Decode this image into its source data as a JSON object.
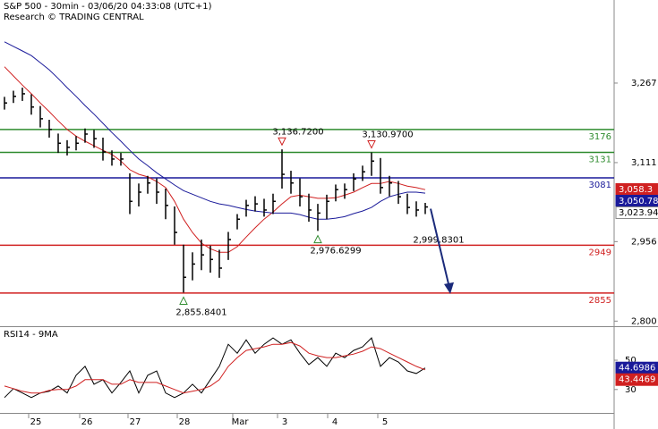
{
  "chart_data": [
    {
      "type": "ohlc",
      "title": "S&P 500 - 30min - 03/06/20 04:33:08 (UTC+1)",
      "subtitle": "Research © TRADING CENTRAL",
      "xlim": [
        -0.5,
        68.1
      ],
      "xticks": [
        {
          "value": 3.5,
          "label": "25"
        },
        {
          "value": 9.2,
          "label": "26"
        },
        {
          "value": 14.6,
          "label": "27"
        },
        {
          "value": 20.1,
          "label": "28"
        },
        {
          "value": 26.3,
          "label": "Mar"
        },
        {
          "value": 31.3,
          "label": "3"
        },
        {
          "value": 36.9,
          "label": "4"
        },
        {
          "value": 42.5,
          "label": "5"
        }
      ],
      "ylim": [
        2790,
        3430
      ],
      "yticks": [
        {
          "value": 2800,
          "label": "2,800"
        },
        {
          "value": 2956,
          "label": "2,956"
        },
        {
          "value": 3111,
          "label": "3,111"
        },
        {
          "value": 3267,
          "label": "3,267"
        }
      ],
      "color": "#000000",
      "high": [
        3240,
        3252,
        3258,
        3245,
        3222,
        3195,
        3168,
        3155,
        3163,
        3178,
        3175,
        3160,
        3135,
        3130,
        3090,
        3070,
        3085,
        3080,
        3060,
        3025,
        2950,
        2935,
        2960,
        2948,
        2940,
        2975,
        3010,
        3038,
        3045,
        3040,
        3050,
        3137,
        3095,
        3080,
        3050,
        3030,
        3048,
        3068,
        3070,
        3090,
        3105,
        3131,
        3120,
        3085,
        3075,
        3050,
        3035,
        3032
      ],
      "low": [
        3215,
        3228,
        3232,
        3205,
        3180,
        3160,
        3130,
        3125,
        3135,
        3150,
        3140,
        3115,
        3105,
        3105,
        3010,
        3025,
        3050,
        3030,
        3000,
        2950,
        2856,
        2880,
        2900,
        2895,
        2885,
        2920,
        2980,
        3005,
        3015,
        3005,
        3010,
        3060,
        3050,
        3025,
        2995,
        2977,
        3000,
        3035,
        3040,
        3055,
        3075,
        3085,
        3050,
        3045,
        3030,
        3010,
        3005,
        3010
      ],
      "close": [
        3228,
        3241,
        3246,
        3220,
        3197,
        3176,
        3149,
        3141,
        3149,
        3167,
        3158,
        3132,
        3118,
        3118,
        3035,
        3053,
        3071,
        3053,
        3027,
        2974,
        2886,
        2912,
        2930,
        2921,
        2904,
        2960,
        3000,
        3027,
        3030,
        3018,
        3035,
        3088,
        3071,
        3044,
        3018,
        3012,
        3035,
        3058,
        3058,
        3079,
        3093,
        3114,
        3062,
        3071,
        3044,
        3023,
        3018,
        3024
      ],
      "series": [
        {
          "color": "#d02020",
          "values": [
            3299,
            3281,
            3263,
            3246,
            3228,
            3211,
            3193,
            3176,
            3163,
            3153,
            3144,
            3135,
            3127,
            3114,
            3097,
            3088,
            3083,
            3074,
            3062,
            3035,
            3000,
            2974,
            2953,
            2942,
            2935,
            2935,
            2946,
            2965,
            2983,
            3000,
            3014,
            3030,
            3044,
            3047,
            3044,
            3041,
            3041,
            3042,
            3047,
            3053,
            3062,
            3070,
            3070,
            3074,
            3070,
            3065,
            3062,
            3058
          ]
        },
        {
          "color": "#1a1a9a",
          "values": [
            3348,
            3339,
            3330,
            3321,
            3307,
            3293,
            3276,
            3258,
            3241,
            3223,
            3206,
            3188,
            3170,
            3153,
            3135,
            3118,
            3105,
            3091,
            3079,
            3067,
            3056,
            3049,
            3042,
            3035,
            3030,
            3027,
            3023,
            3019,
            3016,
            3014,
            3012,
            3012,
            3012,
            3009,
            3004,
            3000,
            3000,
            3002,
            3005,
            3011,
            3016,
            3023,
            3035,
            3044,
            3049,
            3053,
            3053,
            3051
          ]
        }
      ],
      "levels": [
        {
          "value": 3176,
          "color": "#2e8b2e"
        },
        {
          "value": 3131,
          "color": "#2e8b2e"
        },
        {
          "value": 3081,
          "color": "#1a1a9a"
        },
        {
          "value": 2949,
          "color": "#d02020"
        },
        {
          "value": 2855,
          "color": "#d02020"
        }
      ],
      "peak_labels": [
        {
          "label": "3,136.7200",
          "value": 3136.72,
          "x": 31
        },
        {
          "label": "3,130.9700",
          "value": 3130.97,
          "x": 41
        }
      ],
      "trough_labels": [
        {
          "label": "2,976.6299",
          "value": 2976.6299,
          "x": 35
        },
        {
          "label": "2,855.8401",
          "value": 2855.8401,
          "x": 20
        }
      ],
      "target_label": {
        "label": "2,999.8301",
        "value": 2999.8301,
        "x": 48
      },
      "last_values": [
        {
          "label": "3,058.3",
          "value": 3058.3,
          "color": "#d02020",
          "text_color": "#ffffff"
        },
        {
          "label": "3,050.78",
          "value": 3050.78,
          "color": "#1a1a9a",
          "text_color": "#ffffff"
        },
        {
          "label": "3,023.94",
          "value": 3023.94,
          "color": "#ffffff",
          "text_color": "#000000"
        }
      ]
    },
    {
      "type": "line",
      "title": "RSI14 - 9MA",
      "ylim": [
        14,
        72
      ],
      "yticks": [
        30,
        50
      ],
      "series": [
        {
          "color": "#000000",
          "values": [
            24.5,
            30.6,
            27.6,
            24.5,
            27.6,
            28.8,
            32.4,
            27.6,
            39.7,
            45.8,
            33.6,
            36.7,
            27.6,
            34.8,
            42.7,
            27.6,
            39.7,
            42.7,
            27.6,
            24.5,
            27.6,
            33.6,
            27.6,
            36.7,
            45.8,
            60.9,
            54.8,
            63.9,
            54.8,
            60.9,
            65.2,
            60.9,
            63.9,
            54.8,
            47,
            51.8,
            45.8,
            54.8,
            51.8,
            56.7,
            59.1,
            65.2,
            45.8,
            51.8,
            48.8,
            42.7,
            40.9,
            44.7
          ]
        },
        {
          "color": "#d02020",
          "values": [
            32.4,
            30.6,
            28.8,
            27.6,
            27.6,
            29.4,
            30,
            30,
            32.4,
            36.7,
            36.7,
            36.7,
            33.6,
            33.6,
            36.7,
            34.8,
            34.8,
            34.8,
            32.4,
            30,
            27.6,
            28.8,
            30,
            32.4,
            36.7,
            45.8,
            51.8,
            56.7,
            57.9,
            59.1,
            60.9,
            60.9,
            62.1,
            59.7,
            54.8,
            53,
            51.8,
            51.8,
            53,
            54.2,
            56.1,
            59.1,
            57.9,
            54.8,
            51.8,
            48.8,
            45.8,
            43.4
          ]
        }
      ],
      "last_values": [
        {
          "label": "44.6986",
          "value": 44.6986,
          "color": "#1a1a9a",
          "text_color": "#ffffff"
        },
        {
          "label": "43.4469",
          "value": 43.4469,
          "color": "#d02020",
          "text_color": "#ffffff"
        }
      ]
    }
  ]
}
